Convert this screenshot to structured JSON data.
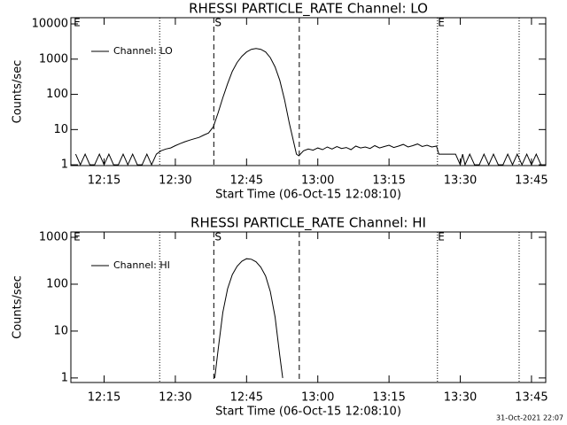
{
  "chart_data": [
    {
      "type": "line",
      "title": "RHESSI PARTICLE_RATE Channel: LO",
      "xlabel": "Start Time (06-Oct-15 12:08:10)",
      "ylabel": "Counts/sec",
      "log_y": true,
      "xlim": [
        728,
        828
      ],
      "ylim": [
        0.95,
        15000
      ],
      "xticks": [
        {
          "value": 735,
          "label": "12:15"
        },
        {
          "value": 750,
          "label": "12:30"
        },
        {
          "value": 765,
          "label": "12:45"
        },
        {
          "value": 780,
          "label": "13:00"
        },
        {
          "value": 795,
          "label": "13:15"
        },
        {
          "value": 810,
          "label": "13:30"
        },
        {
          "value": 825,
          "label": "13:45"
        }
      ],
      "yticks": [
        1,
        10,
        100,
        1000,
        10000
      ],
      "vlines": [
        {
          "x": 746.7,
          "style": "dotted"
        },
        {
          "x": 758.1,
          "style": "dashed"
        },
        {
          "x": 776.1,
          "style": "dashed"
        },
        {
          "x": 805.2,
          "style": "dotted"
        },
        {
          "x": 822.4,
          "style": "dotted"
        }
      ],
      "annotations": [
        {
          "text": "E",
          "x": 729.3
        },
        {
          "text": "S",
          "x": 759
        },
        {
          "text": "E",
          "x": 806
        }
      ],
      "series": [
        {
          "name": "Channel: LO",
          "color": "#000000",
          "x": [
            729,
            730,
            731,
            732,
            733,
            734,
            735,
            736,
            737,
            738,
            739,
            740,
            741,
            742,
            743,
            744,
            745,
            746,
            747,
            748,
            749,
            750,
            751,
            752,
            753,
            754,
            755,
            756,
            757,
            758,
            759,
            760,
            761,
            762,
            763,
            764,
            765,
            766,
            767,
            768,
            769,
            770,
            771,
            772,
            773,
            774,
            775,
            775.5,
            776,
            777,
            778,
            779,
            780,
            781,
            782,
            783,
            784,
            785,
            786,
            787,
            788,
            789,
            790,
            791,
            792,
            793,
            794,
            795,
            796,
            797,
            798,
            799,
            800,
            801,
            802,
            803,
            804,
            805,
            805.5,
            806,
            807,
            808,
            809,
            810,
            810.5,
            811,
            812,
            813,
            814,
            815,
            816,
            817,
            818,
            819,
            820,
            821,
            822,
            823,
            824,
            825,
            826,
            827
          ],
          "values": [
            2,
            1,
            2,
            1,
            1,
            2,
            1,
            2,
            1,
            1,
            2,
            1,
            2,
            1,
            1,
            2,
            1,
            2,
            2.5,
            2.8,
            3,
            3.5,
            4,
            4.5,
            5,
            5.5,
            6,
            7,
            8,
            12,
            30,
            80,
            200,
            450,
            800,
            1200,
            1600,
            1900,
            2000,
            1900,
            1600,
            1100,
            600,
            250,
            70,
            15,
            4,
            2,
            1.8,
            2.5,
            2.8,
            2.6,
            3,
            2.7,
            3.2,
            2.8,
            3.3,
            2.9,
            3.1,
            2.7,
            3.4,
            3,
            3.2,
            2.9,
            3.5,
            3,
            3.3,
            3.6,
            3.1,
            3.4,
            3.8,
            3.2,
            3.5,
            3.9,
            3.3,
            3.6,
            3.2,
            3.4,
            2,
            2,
            2,
            2,
            2,
            1,
            2,
            1,
            2,
            1,
            1,
            2,
            1,
            2,
            1,
            1,
            2,
            1,
            2,
            1,
            2,
            1,
            2,
            1
          ]
        }
      ],
      "legend": "upper left"
    },
    {
      "type": "line",
      "title": "RHESSI PARTICLE_RATE Channel: HI",
      "xlabel": "Start Time (06-Oct-15 12:08:10)",
      "ylabel": "Counts/sec",
      "log_y": true,
      "xlim": [
        728,
        828
      ],
      "ylim": [
        0.8,
        1300
      ],
      "xticks": [
        {
          "value": 735,
          "label": "12:15"
        },
        {
          "value": 750,
          "label": "12:30"
        },
        {
          "value": 765,
          "label": "12:45"
        },
        {
          "value": 780,
          "label": "13:00"
        },
        {
          "value": 795,
          "label": "13:15"
        },
        {
          "value": 810,
          "label": "13:30"
        },
        {
          "value": 825,
          "label": "13:45"
        }
      ],
      "yticks": [
        1,
        10,
        100,
        1000
      ],
      "vlines": [
        {
          "x": 746.7,
          "style": "dotted"
        },
        {
          "x": 758.1,
          "style": "dashed"
        },
        {
          "x": 776.1,
          "style": "dashed"
        },
        {
          "x": 805.2,
          "style": "dotted"
        },
        {
          "x": 822.4,
          "style": "dotted"
        }
      ],
      "annotations": [
        {
          "text": "E",
          "x": 729.3
        },
        {
          "text": "S",
          "x": 759
        },
        {
          "text": "E",
          "x": 806
        }
      ],
      "series": [
        {
          "name": "Channel: HI",
          "color": "#000000",
          "x": [
            758.3,
            759,
            760,
            761,
            762,
            763,
            764,
            765,
            766,
            767,
            768,
            769,
            770,
            771,
            772,
            772.6
          ],
          "values": [
            1,
            4,
            25,
            80,
            160,
            240,
            310,
            350,
            340,
            300,
            230,
            150,
            70,
            20,
            3,
            1
          ]
        }
      ],
      "legend": "upper left"
    }
  ],
  "footer": "31-Oct-2021 22:07"
}
